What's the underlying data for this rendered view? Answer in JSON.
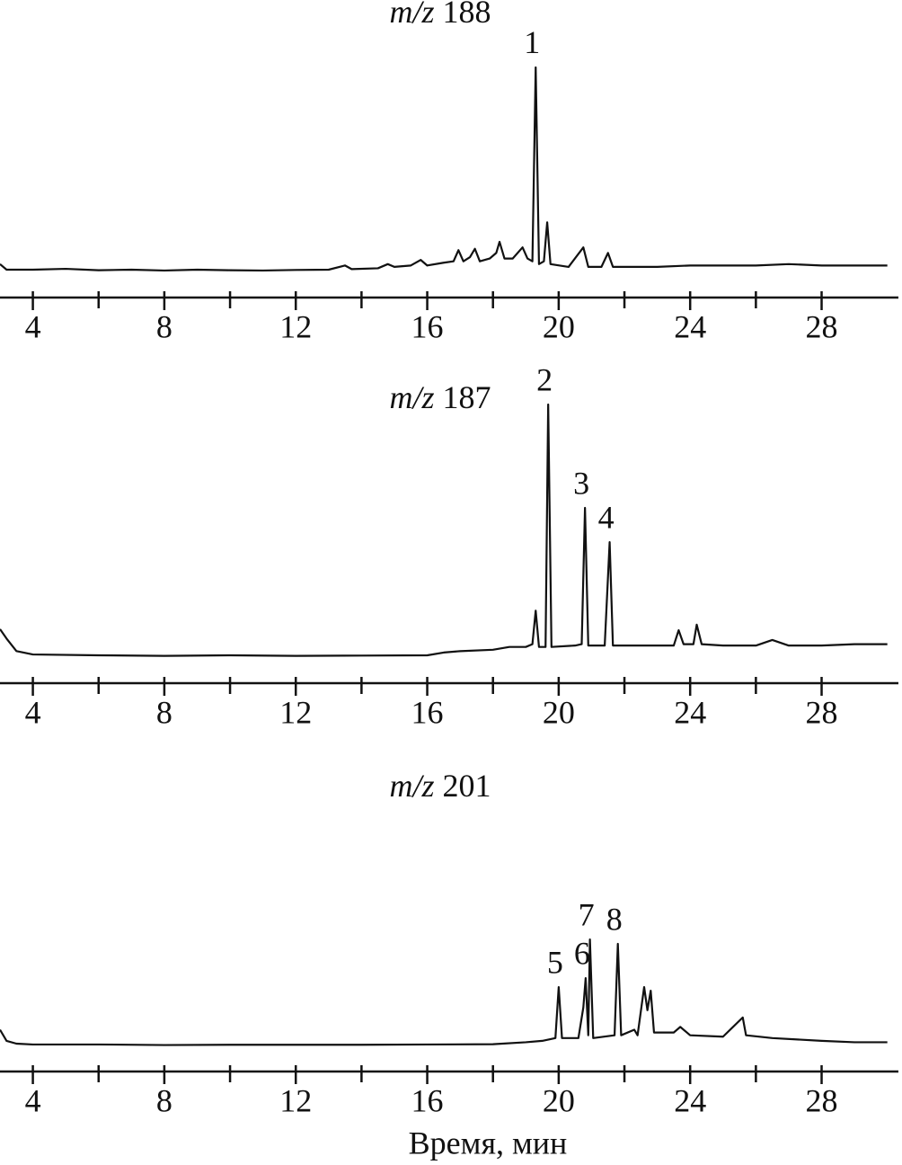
{
  "chart_data": [
    {
      "type": "line",
      "title": "m/z 188",
      "color": "#111111",
      "xlim": [
        3.0,
        30.2
      ],
      "xticks": [
        4,
        8,
        12,
        16,
        20,
        24,
        28
      ],
      "xminorticks": [
        6,
        10,
        14,
        18,
        22,
        26
      ],
      "ylim": [
        0,
        100
      ],
      "x": [
        3.0,
        3.2,
        4,
        5,
        6,
        7,
        8,
        9,
        10,
        11,
        12,
        13,
        13.5,
        13.7,
        14.5,
        14.8,
        15,
        15.5,
        15.8,
        16,
        16.5,
        16.8,
        16.95,
        17.1,
        17.3,
        17.45,
        17.6,
        17.9,
        18.1,
        18.2,
        18.35,
        18.6,
        18.9,
        19.05,
        19.2,
        19.3,
        19.4,
        19.55,
        19.65,
        19.75,
        20.3,
        20.75,
        20.9,
        21.3,
        21.5,
        21.65,
        23,
        24,
        26,
        27,
        28,
        30
      ],
      "values": [
        12,
        10,
        10,
        10.3,
        9.8,
        10,
        9.7,
        10,
        9.8,
        9.7,
        9.9,
        10,
        11.5,
        10.2,
        10.5,
        12,
        11,
        11.5,
        13.5,
        11.5,
        12.5,
        13,
        17,
        13,
        14.5,
        17.5,
        13,
        14,
        16,
        20,
        14,
        14,
        18,
        14,
        13,
        82.6,
        12,
        13,
        27,
        12,
        11,
        18,
        11,
        11,
        16,
        11,
        11,
        11.5,
        11.5,
        12,
        11.5,
        11.5
      ],
      "annotations": [
        {
          "text": "1",
          "x": 19.3
        }
      ]
    },
    {
      "type": "line",
      "title": "m/z 187",
      "color": "#111111",
      "xlim": [
        3.0,
        30.2
      ],
      "xticks": [
        4,
        8,
        12,
        16,
        20,
        24,
        28
      ],
      "xminorticks": [
        6,
        10,
        14,
        18,
        22,
        26
      ],
      "ylim": [
        0,
        100
      ],
      "x": [
        3.0,
        3.2,
        3.5,
        4,
        6,
        8,
        10,
        12,
        14,
        16,
        16.5,
        17,
        18,
        18.5,
        19,
        19.2,
        19.3,
        19.4,
        19.6,
        19.68,
        19.78,
        20.5,
        20.7,
        20.8,
        20.9,
        21.4,
        21.55,
        21.65,
        22.5,
        23.5,
        23.65,
        23.8,
        24.1,
        24.2,
        24.35,
        25,
        26,
        26.5,
        27,
        28,
        29,
        30
      ],
      "values": [
        19.4,
        16,
        11.5,
        10.3,
        10,
        9.8,
        10,
        9.8,
        9.9,
        10,
        11,
        11.5,
        12,
        13,
        13,
        14,
        26,
        13,
        13,
        100,
        13,
        13.5,
        14,
        62.9,
        13.5,
        13.5,
        50.6,
        13.5,
        13.5,
        13.5,
        19,
        14,
        14,
        21,
        14,
        13.5,
        13.5,
        15.5,
        13.5,
        13.5,
        14,
        14
      ],
      "annotations": [
        {
          "text": "2",
          "x": 19.68
        },
        {
          "text": "3",
          "x": 20.8
        },
        {
          "text": "4",
          "x": 21.55
        }
      ]
    },
    {
      "type": "line",
      "title": "m/z 201",
      "color": "#111111",
      "xlabel": "Время, мин",
      "xlim": [
        3.0,
        30.2
      ],
      "xticks": [
        4,
        8,
        12,
        16,
        20,
        24,
        28
      ],
      "xminorticks": [
        6,
        10,
        14,
        18,
        22,
        26
      ],
      "ylim": [
        0,
        100
      ],
      "x": [
        3.0,
        3.2,
        3.5,
        4,
        6,
        8,
        10,
        12,
        14,
        16,
        18,
        19,
        19.5,
        19.9,
        20.0,
        20.1,
        20.6,
        20.75,
        20.82,
        20.9,
        20.95,
        21.05,
        21.7,
        21.8,
        21.9,
        22.3,
        22.4,
        22.6,
        22.7,
        22.8,
        22.9,
        23.5,
        23.7,
        24,
        25,
        25.6,
        25.7,
        26.5,
        28,
        29,
        30
      ],
      "values": [
        15,
        11,
        10,
        9.7,
        9.7,
        9.5,
        9.6,
        9.6,
        9.6,
        9.7,
        9.8,
        10.5,
        11,
        12,
        30.3,
        12,
        12,
        23,
        33.5,
        13,
        47.4,
        12,
        13,
        45.8,
        13,
        15,
        13,
        30.3,
        22,
        29,
        14,
        14,
        16,
        13,
        12.5,
        19.4,
        13,
        12,
        11,
        10.5,
        10.5
      ],
      "annotations": [
        {
          "text": "5",
          "x": 20.0
        },
        {
          "text": "6",
          "x": 20.82
        },
        {
          "text": "7",
          "x": 20.95
        },
        {
          "text": "8",
          "x": 21.8
        }
      ]
    }
  ]
}
